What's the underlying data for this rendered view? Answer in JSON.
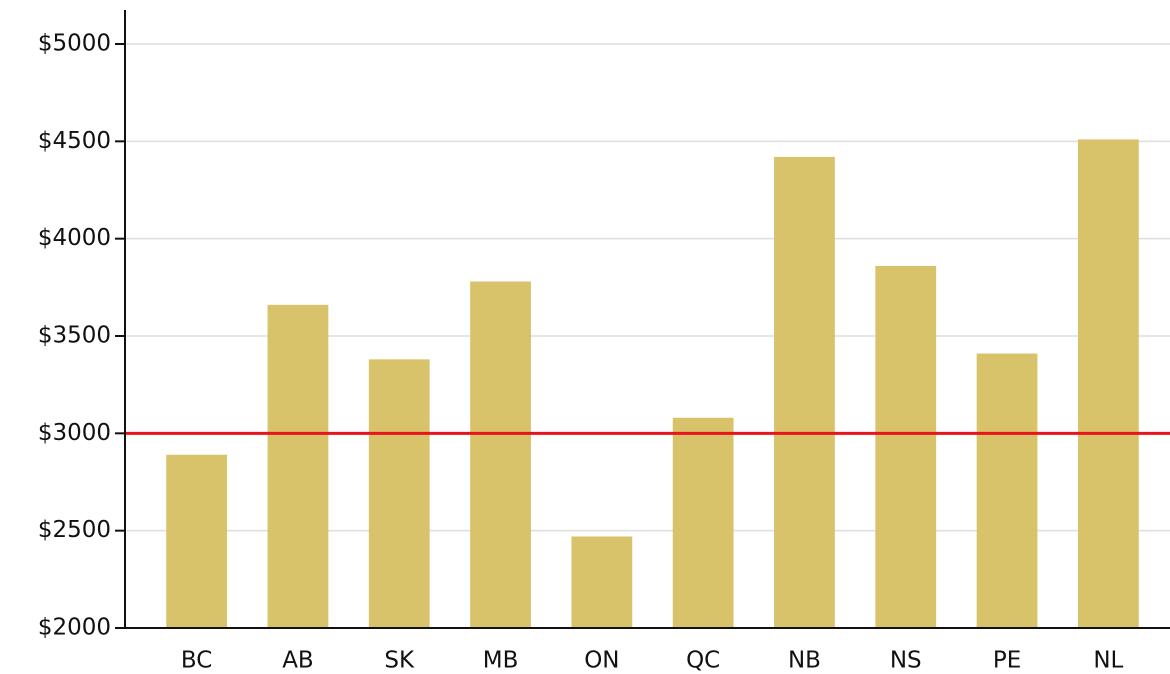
{
  "chart_data": {
    "type": "bar",
    "categories": [
      "BC",
      "AB",
      "SK",
      "MB",
      "ON",
      "QC",
      "NB",
      "NS",
      "PE",
      "NL"
    ],
    "values": [
      2890,
      3660,
      3380,
      3780,
      2470,
      3080,
      4420,
      3860,
      3410,
      4510
    ],
    "color": "#d8c36a",
    "ylim": [
      2000,
      5000
    ],
    "yticks": [
      {
        "value": 2000,
        "label": "$2000"
      },
      {
        "value": 2500,
        "label": "$2500"
      },
      {
        "value": 3000,
        "label": "$3000"
      },
      {
        "value": 3500,
        "label": "$3500"
      },
      {
        "value": 4000,
        "label": "$4000"
      },
      {
        "value": 4500,
        "label": "$4500"
      },
      {
        "value": 5000,
        "label": "$5000"
      }
    ],
    "grid": true,
    "reference_line": {
      "value": 3000,
      "color": "#e8141c"
    }
  }
}
